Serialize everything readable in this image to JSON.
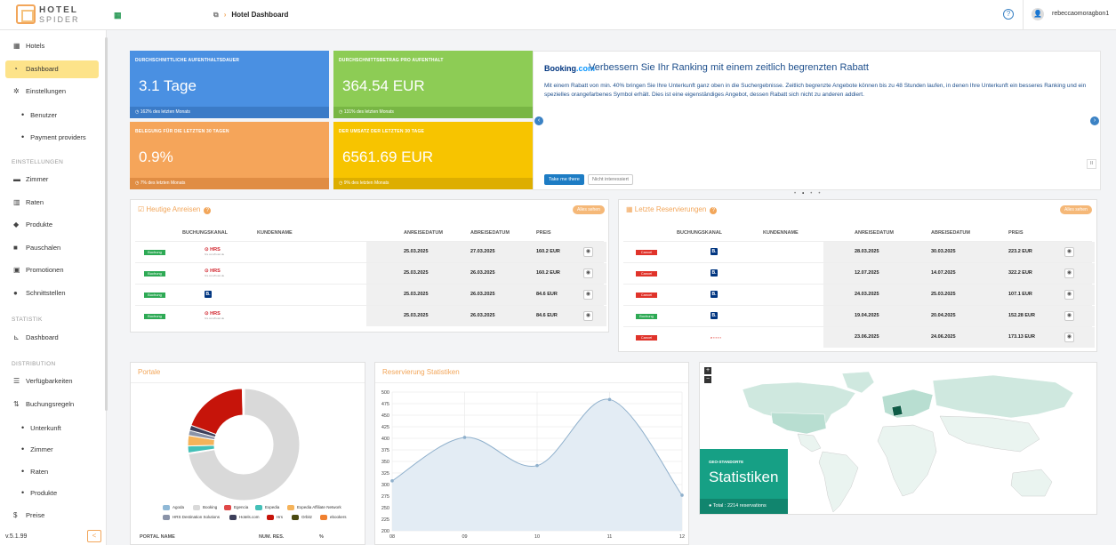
{
  "app": {
    "logo_line1": "HOTEL",
    "logo_line2": "SPIDER",
    "hotel_icon": "hotel-icon"
  },
  "header": {
    "breadcrumb": "Hotel Dashboard",
    "help": "?",
    "user": "rebeccaomoragbon1"
  },
  "sidebar": {
    "items": [
      {
        "label": "Hotels",
        "icon": "building-icon"
      },
      {
        "label": "Dashboard",
        "icon": "dashboard-icon"
      },
      {
        "label": "Einstellungen",
        "icon": "gear-icon"
      },
      {
        "label": "Benutzer"
      },
      {
        "label": "Payment providers"
      },
      {
        "label": "Zimmer",
        "icon": "bed-icon"
      },
      {
        "label": "Raten",
        "icon": "rates-icon"
      },
      {
        "label": "Produkte",
        "icon": "tag-icon"
      },
      {
        "label": "Pauschalen",
        "icon": "package-icon"
      },
      {
        "label": "Promotionen",
        "icon": "gift-icon"
      },
      {
        "label": "Schnittstellen",
        "icon": "globe-icon"
      },
      {
        "label": "Dashboard",
        "icon": "chart-icon"
      },
      {
        "label": "Verfügbarkeiten",
        "icon": "list-icon"
      },
      {
        "label": "Buchungsregeln",
        "icon": "sort-icon"
      },
      {
        "label": "Unterkunft"
      },
      {
        "label": "Zimmer"
      },
      {
        "label": "Raten"
      },
      {
        "label": "Produkte"
      },
      {
        "label": "Preise",
        "icon": "dollar-icon"
      }
    ],
    "sections": [
      "EINSTELLUNGEN",
      "STATISTIK",
      "DISTRIBUTION"
    ],
    "version": "v.5.1.99",
    "collapse": "<"
  },
  "kpis": [
    {
      "label": "DURCHSCHNITTLICHE AUFENTHALTSDAUER",
      "value": "3.1 Tage",
      "change": "162%",
      "footer": "des letzten Monats"
    },
    {
      "label": "DURCHSCHNITTSBETRAG PRO AUFENTHALT",
      "value": "364.54 EUR",
      "change": "131%",
      "footer": "des letzten Monats"
    },
    {
      "label": "BELEGUNG FÜR DIE LETZTEN 30 TAGEN",
      "value": "0.9%",
      "change": "7%",
      "footer": "des letzten Monats"
    },
    {
      "label": "DER UMSATZ DER LETZTEN 30 TAGE",
      "value": "6561.69 EUR",
      "change": "9%",
      "footer": "des letzten Monats"
    }
  ],
  "promo": {
    "brand_a": "Booking",
    "brand_b": ".com",
    "headline": "Verbessern Sie Ihr Ranking mit einem zeitlich begrenzten Rabatt",
    "body": "Mit einem Rabatt von min. 40% bringen Sie Ihre Unterkunft ganz oben in die Suchergebnisse. Zeitlich begrenzte Angebote können bis zu 48 Stunden laufen, in denen Ihre Unterkunft ein besseres Ranking und ein spezielles orangefarbenes Symbol erhält. Dies ist eine eigenständiges Angebot, dessen Rabatt sich nicht zu anderen addiert.",
    "primary": "Take me there",
    "secondary": "Nicht interessiert",
    "pause": "II"
  },
  "arrivals": {
    "title": "Heutige Anreisen",
    "all": "Alles sehen",
    "columns": [
      "BUCHUNGSKANAL",
      "KUNDENNAME",
      "ANREISEDATUM",
      "ABREISEDATUM",
      "PREIS"
    ],
    "rows": [
      {
        "status": "Buchung",
        "channel": "HRS",
        "arrive": "25.03.2025",
        "depart": "27.03.2025",
        "price": "160.2 EUR"
      },
      {
        "status": "Buchung",
        "channel": "HRS",
        "arrive": "25.03.2025",
        "depart": "26.03.2025",
        "price": "160.2 EUR"
      },
      {
        "status": "Buchung",
        "channel": "B",
        "arrive": "25.03.2025",
        "depart": "26.03.2025",
        "price": "84.6 EUR"
      },
      {
        "status": "Buchung",
        "channel": "HRS",
        "arrive": "25.03.2025",
        "depart": "26.03.2025",
        "price": "84.6 EUR"
      }
    ]
  },
  "reservations": {
    "title": "Letzte Reservierungen",
    "all": "Alles sehen",
    "columns": [
      "BUCHUNGSKANAL",
      "KUNDENNAME",
      "ANREISEDATUM",
      "ABREISEDATUM",
      "PREIS"
    ],
    "rows": [
      {
        "status": "Cancel",
        "channel": "B",
        "arrive": "28.03.2025",
        "depart": "30.03.2025",
        "price": "223.2 EUR"
      },
      {
        "status": "Cancel",
        "channel": "B",
        "arrive": "12.07.2025",
        "depart": "14.07.2025",
        "price": "322.2 EUR"
      },
      {
        "status": "Cancel",
        "channel": "B",
        "arrive": "24.03.2025",
        "depart": "25.03.2025",
        "price": "107.1 EUR"
      },
      {
        "status": "Buchung",
        "channel": "B",
        "arrive": "19.04.2025",
        "depart": "20.04.2025",
        "price": "152.28 EUR"
      },
      {
        "status": "Cancel",
        "channel": "Expedia",
        "arrive": "23.06.2025",
        "depart": "24.06.2025",
        "price": "173.13 EUR"
      }
    ]
  },
  "portale": {
    "title": "Portale",
    "table_cols": [
      "PORTAL NAME",
      "NUM. RES.",
      "%"
    ],
    "colors": {
      "Agoda": "#8fb8d6",
      "Booking": "#d9d9d9",
      "Egencia": "#e04848",
      "Expedia": "#44c0b8",
      "Expedia Affiliate Network": "#f5b35a",
      "HRS Destination Solutions": "#8a93a8",
      "Hotels.com": "#3d3f5a",
      "Hrs": "#c6140a",
      "Orbitz": "#4b4a10",
      "ebookers": "#f08030"
    }
  },
  "chart_data": [
    {
      "type": "pie",
      "title": "Portale",
      "labels": [
        "Agoda",
        "Booking",
        "Egencia",
        "Expedia",
        "Expedia Affiliate Network",
        "HRS Destination Solutions",
        "Hotels.com",
        "Hrs",
        "Orbitz",
        "ebookers"
      ],
      "values": [
        0.3,
        72,
        0.3,
        2,
        3,
        1.5,
        1.5,
        19,
        0.2,
        0.2
      ],
      "legend": "bottom"
    },
    {
      "type": "area",
      "title": "Reservierung Statistiken",
      "x": [
        "08",
        "09",
        "10",
        "11",
        "12"
      ],
      "y": [
        308,
        402,
        341,
        484,
        277
      ],
      "ylim": [
        200,
        500
      ],
      "yticks": [
        200,
        225,
        250,
        275,
        300,
        325,
        350,
        375,
        400,
        425,
        450,
        475,
        500
      ],
      "grid": true
    }
  ],
  "geo": {
    "label": "GEO-STANDORTE",
    "title": "Statistiken",
    "total": "Total : 2214 reservations",
    "zoom_in": "+",
    "zoom_out": "−"
  }
}
